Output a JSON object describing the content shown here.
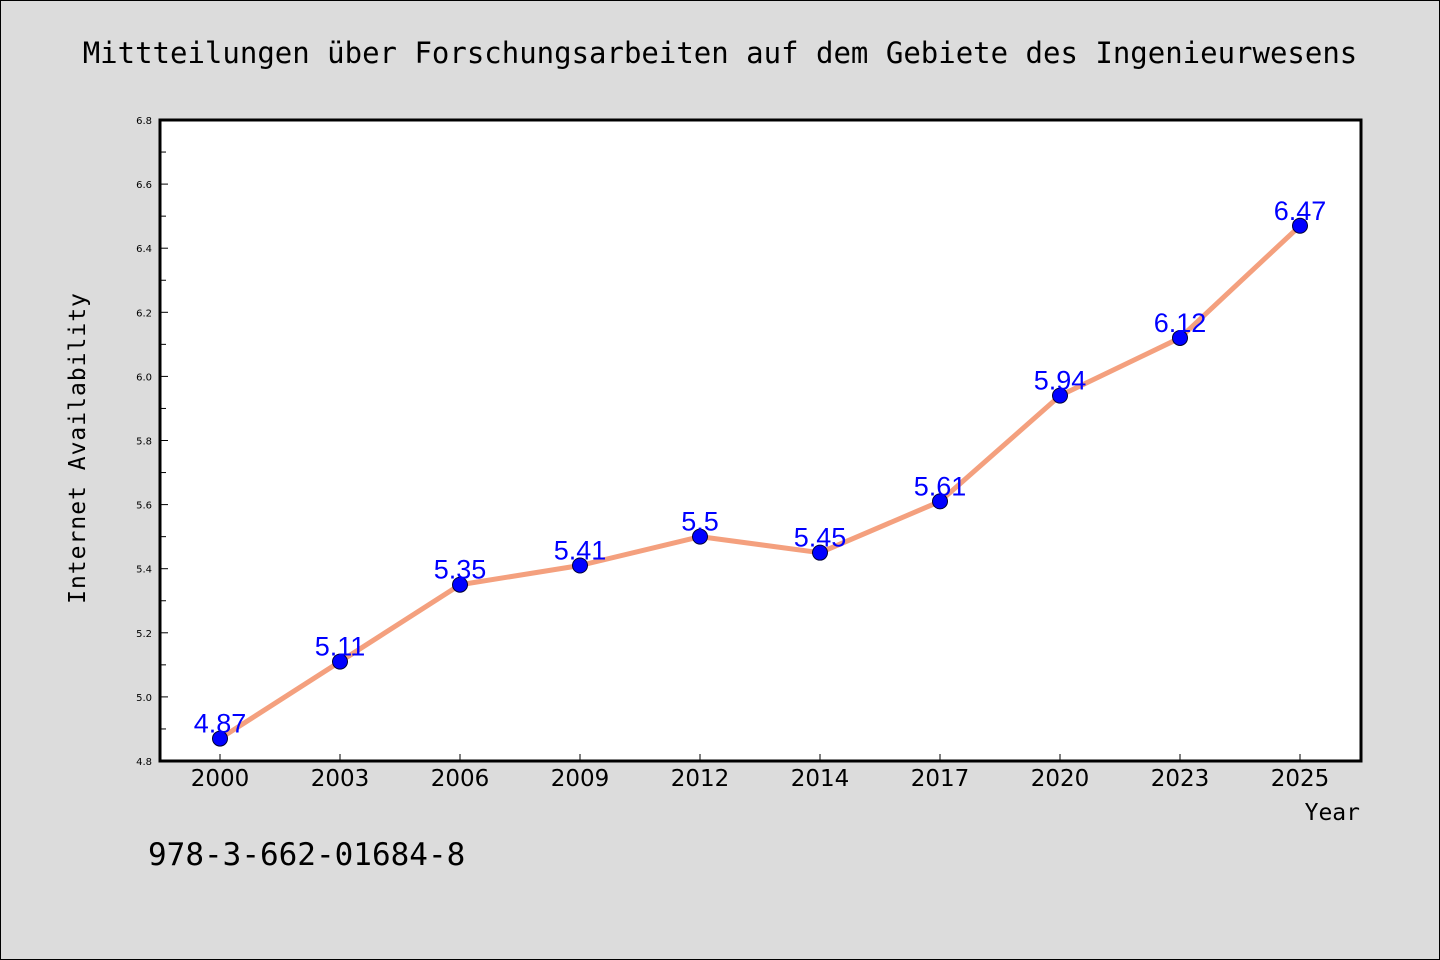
{
  "chart_data": {
    "type": "line",
    "title": "Mittteilungen über Forschungsarbeiten auf dem Gebiete des Ingenieurwesens",
    "xlabel": "Year",
    "ylabel": "Internet Availability",
    "categories": [
      "2000",
      "2003",
      "2006",
      "2009",
      "2012",
      "2014",
      "2017",
      "2020",
      "2023",
      "2025"
    ],
    "values": [
      4.87,
      5.11,
      5.35,
      5.41,
      5.5,
      5.45,
      5.61,
      5.94,
      6.12,
      6.47
    ],
    "data_labels": [
      "4.87",
      "5.11",
      "5.35",
      "5.41",
      "5.5",
      "5.45",
      "5.61",
      "5.94",
      "6.12",
      "6.47"
    ],
    "ylim": [
      4.8,
      6.8
    ],
    "yticks": [
      "4.8",
      "5.0",
      "5.2",
      "5.4",
      "5.6",
      "5.8",
      "6.0",
      "6.2",
      "6.4",
      "6.6",
      "6.8"
    ],
    "line_color": "#f4a07e",
    "marker_color": "#0000ff",
    "label_color": "#0000ff",
    "grid": false
  },
  "footer": {
    "isbn": "978-3-662-01684-8"
  }
}
